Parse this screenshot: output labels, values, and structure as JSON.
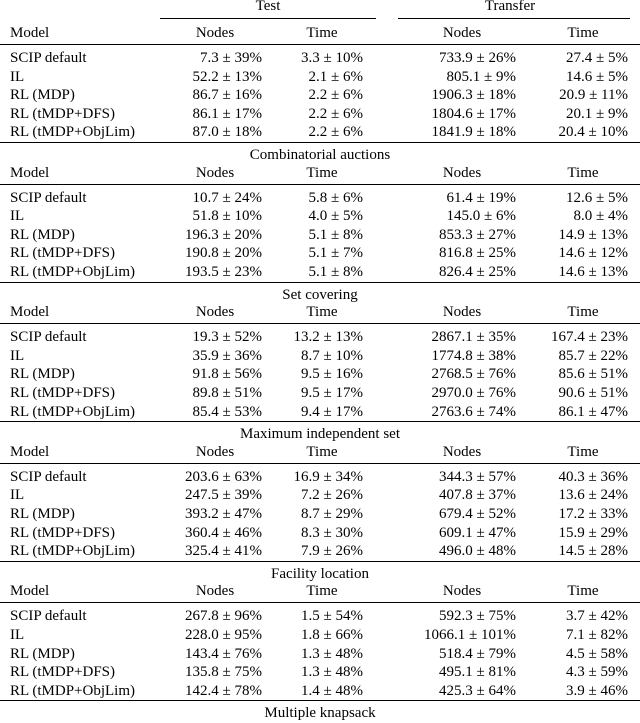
{
  "header": {
    "groups": [
      "Test",
      "Transfer"
    ]
  },
  "blocks": [
    {
      "columns": [
        "Model",
        "Nodes",
        "Time",
        "Nodes",
        "Time"
      ],
      "rows": [
        [
          "SCIP default",
          "7.3 ± 39%",
          "3.3 ± 10%",
          "733.9 ± 26%",
          "27.4 ± 5%"
        ],
        [
          "IL",
          "52.2 ± 13%",
          "2.1 ± 6%",
          "805.1 ± 9%",
          "14.6 ± 5%"
        ],
        [
          "RL (MDP)",
          "86.7 ± 16%",
          "2.2 ± 6%",
          "1906.3 ± 18%",
          "20.9 ± 11%"
        ],
        [
          "RL (tMDP+DFS)",
          "86.1 ± 17%",
          "2.2 ± 6%",
          "1804.6 ± 17%",
          "20.1 ± 9%"
        ],
        [
          "RL (tMDP+ObjLim)",
          "87.0 ± 18%",
          "2.2 ± 6%",
          "1841.9 ± 18%",
          "20.4 ± 10%"
        ]
      ],
      "caption": "Combinatorial auctions"
    },
    {
      "columns": [
        "Model",
        "Nodes",
        "Time",
        "Nodes",
        "Time"
      ],
      "rows": [
        [
          "SCIP default",
          "10.7 ± 24%",
          "5.8 ± 6%",
          "61.4 ± 19%",
          "12.6 ± 5%"
        ],
        [
          "IL",
          "51.8 ± 10%",
          "4.0 ± 5%",
          "145.0 ± 6%",
          "8.0 ± 4%"
        ],
        [
          "RL (MDP)",
          "196.3 ± 20%",
          "5.1 ± 8%",
          "853.3 ± 27%",
          "14.9 ± 13%"
        ],
        [
          "RL (tMDP+DFS)",
          "190.8 ± 20%",
          "5.1 ± 7%",
          "816.8 ± 25%",
          "14.6 ± 12%"
        ],
        [
          "RL (tMDP+ObjLim)",
          "193.5 ± 23%",
          "5.1 ± 8%",
          "826.4 ± 25%",
          "14.6 ± 13%"
        ]
      ],
      "caption": "Set covering"
    },
    {
      "columns": [
        "Model",
        "Nodes",
        "Time",
        "Nodes",
        "Time"
      ],
      "rows": [
        [
          "SCIP default",
          "19.3 ± 52%",
          "13.2 ± 13%",
          "2867.1 ± 35%",
          "167.4 ± 23%"
        ],
        [
          "IL",
          "35.9 ± 36%",
          "8.7 ± 10%",
          "1774.8 ± 38%",
          "85.7 ± 22%"
        ],
        [
          "RL (MDP)",
          "91.8 ± 56%",
          "9.5 ± 16%",
          "2768.5 ± 76%",
          "85.6 ± 51%"
        ],
        [
          "RL (tMDP+DFS)",
          "89.8 ± 51%",
          "9.5 ± 17%",
          "2970.0 ± 76%",
          "90.6 ± 51%"
        ],
        [
          "RL (tMDP+ObjLim)",
          "85.4 ± 53%",
          "9.4 ± 17%",
          "2763.6 ± 74%",
          "86.1 ± 47%"
        ]
      ],
      "caption": "Maximum independent set"
    },
    {
      "columns": [
        "Model",
        "Nodes",
        "Time",
        "Nodes",
        "Time"
      ],
      "rows": [
        [
          "SCIP default",
          "203.6 ± 63%",
          "16.9 ± 34%",
          "344.3 ± 57%",
          "40.3 ± 36%"
        ],
        [
          "IL",
          "247.5 ± 39%",
          "7.2 ± 26%",
          "407.8 ± 37%",
          "13.6 ± 24%"
        ],
        [
          "RL (MDP)",
          "393.2 ± 47%",
          "8.7 ± 29%",
          "679.4 ± 52%",
          "17.2 ± 33%"
        ],
        [
          "RL (tMDP+DFS)",
          "360.4 ± 46%",
          "8.3 ± 30%",
          "609.1 ± 47%",
          "15.9 ± 29%"
        ],
        [
          "RL (tMDP+ObjLim)",
          "325.4 ± 41%",
          "7.9 ± 26%",
          "496.0 ± 48%",
          "14.5 ± 28%"
        ]
      ],
      "caption": "Facility location"
    },
    {
      "columns": [
        "Model",
        "Nodes",
        "Time",
        "Nodes",
        "Time"
      ],
      "rows": [
        [
          "SCIP default",
          "267.8 ± 96%",
          "1.5 ± 54%",
          "592.3 ± 75%",
          "3.7 ± 42%"
        ],
        [
          "IL",
          "228.0 ± 95%",
          "1.8 ± 66%",
          "1066.1 ± 101%",
          "7.1 ± 82%"
        ],
        [
          "RL (MDP)",
          "143.4 ± 76%",
          "1.3 ± 48%",
          "518.4 ± 79%",
          "4.5 ± 58%"
        ],
        [
          "RL (tMDP+DFS)",
          "135.8 ± 75%",
          "1.3 ± 48%",
          "495.1 ± 81%",
          "4.3 ± 59%"
        ],
        [
          "RL (tMDP+ObjLim)",
          "142.4 ± 78%",
          "1.4 ± 48%",
          "425.3 ± 64%",
          "3.9 ± 46%"
        ]
      ],
      "caption": "Multiple knapsack"
    }
  ]
}
